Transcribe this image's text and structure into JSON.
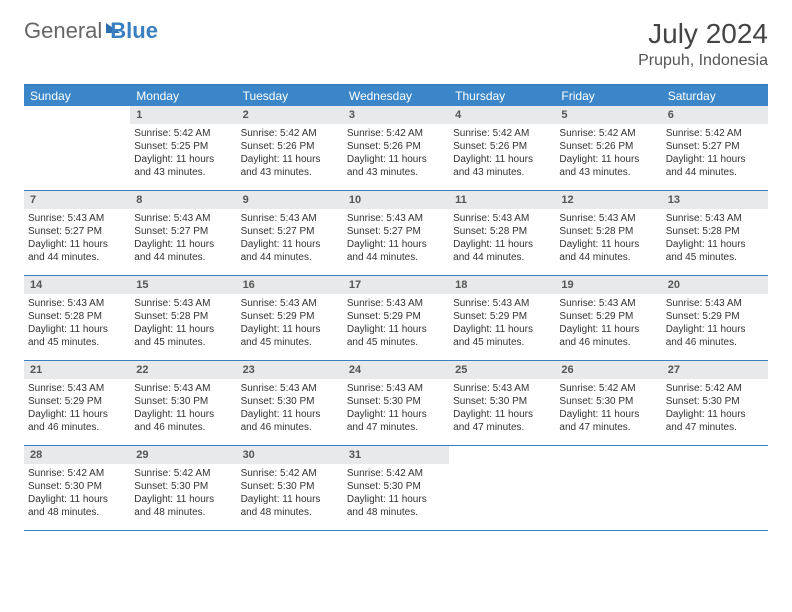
{
  "logo": {
    "part1": "General",
    "part2": "Blue"
  },
  "title": "July 2024",
  "location": "Prupuh, Indonesia",
  "colors": {
    "header_bg": "#3a86c8",
    "border": "#3a7fbf",
    "daynum_bg": "#e8e9ea",
    "text": "#333333",
    "title_text": "#444444"
  },
  "day_names": [
    "Sunday",
    "Monday",
    "Tuesday",
    "Wednesday",
    "Thursday",
    "Friday",
    "Saturday"
  ],
  "weeks": [
    [
      null,
      {
        "n": "1",
        "sr": "Sunrise: 5:42 AM",
        "ss": "Sunset: 5:25 PM",
        "d1": "Daylight: 11 hours",
        "d2": "and 43 minutes."
      },
      {
        "n": "2",
        "sr": "Sunrise: 5:42 AM",
        "ss": "Sunset: 5:26 PM",
        "d1": "Daylight: 11 hours",
        "d2": "and 43 minutes."
      },
      {
        "n": "3",
        "sr": "Sunrise: 5:42 AM",
        "ss": "Sunset: 5:26 PM",
        "d1": "Daylight: 11 hours",
        "d2": "and 43 minutes."
      },
      {
        "n": "4",
        "sr": "Sunrise: 5:42 AM",
        "ss": "Sunset: 5:26 PM",
        "d1": "Daylight: 11 hours",
        "d2": "and 43 minutes."
      },
      {
        "n": "5",
        "sr": "Sunrise: 5:42 AM",
        "ss": "Sunset: 5:26 PM",
        "d1": "Daylight: 11 hours",
        "d2": "and 43 minutes."
      },
      {
        "n": "6",
        "sr": "Sunrise: 5:42 AM",
        "ss": "Sunset: 5:27 PM",
        "d1": "Daylight: 11 hours",
        "d2": "and 44 minutes."
      }
    ],
    [
      {
        "n": "7",
        "sr": "Sunrise: 5:43 AM",
        "ss": "Sunset: 5:27 PM",
        "d1": "Daylight: 11 hours",
        "d2": "and 44 minutes."
      },
      {
        "n": "8",
        "sr": "Sunrise: 5:43 AM",
        "ss": "Sunset: 5:27 PM",
        "d1": "Daylight: 11 hours",
        "d2": "and 44 minutes."
      },
      {
        "n": "9",
        "sr": "Sunrise: 5:43 AM",
        "ss": "Sunset: 5:27 PM",
        "d1": "Daylight: 11 hours",
        "d2": "and 44 minutes."
      },
      {
        "n": "10",
        "sr": "Sunrise: 5:43 AM",
        "ss": "Sunset: 5:27 PM",
        "d1": "Daylight: 11 hours",
        "d2": "and 44 minutes."
      },
      {
        "n": "11",
        "sr": "Sunrise: 5:43 AM",
        "ss": "Sunset: 5:28 PM",
        "d1": "Daylight: 11 hours",
        "d2": "and 44 minutes."
      },
      {
        "n": "12",
        "sr": "Sunrise: 5:43 AM",
        "ss": "Sunset: 5:28 PM",
        "d1": "Daylight: 11 hours",
        "d2": "and 44 minutes."
      },
      {
        "n": "13",
        "sr": "Sunrise: 5:43 AM",
        "ss": "Sunset: 5:28 PM",
        "d1": "Daylight: 11 hours",
        "d2": "and 45 minutes."
      }
    ],
    [
      {
        "n": "14",
        "sr": "Sunrise: 5:43 AM",
        "ss": "Sunset: 5:28 PM",
        "d1": "Daylight: 11 hours",
        "d2": "and 45 minutes."
      },
      {
        "n": "15",
        "sr": "Sunrise: 5:43 AM",
        "ss": "Sunset: 5:28 PM",
        "d1": "Daylight: 11 hours",
        "d2": "and 45 minutes."
      },
      {
        "n": "16",
        "sr": "Sunrise: 5:43 AM",
        "ss": "Sunset: 5:29 PM",
        "d1": "Daylight: 11 hours",
        "d2": "and 45 minutes."
      },
      {
        "n": "17",
        "sr": "Sunrise: 5:43 AM",
        "ss": "Sunset: 5:29 PM",
        "d1": "Daylight: 11 hours",
        "d2": "and 45 minutes."
      },
      {
        "n": "18",
        "sr": "Sunrise: 5:43 AM",
        "ss": "Sunset: 5:29 PM",
        "d1": "Daylight: 11 hours",
        "d2": "and 45 minutes."
      },
      {
        "n": "19",
        "sr": "Sunrise: 5:43 AM",
        "ss": "Sunset: 5:29 PM",
        "d1": "Daylight: 11 hours",
        "d2": "and 46 minutes."
      },
      {
        "n": "20",
        "sr": "Sunrise: 5:43 AM",
        "ss": "Sunset: 5:29 PM",
        "d1": "Daylight: 11 hours",
        "d2": "and 46 minutes."
      }
    ],
    [
      {
        "n": "21",
        "sr": "Sunrise: 5:43 AM",
        "ss": "Sunset: 5:29 PM",
        "d1": "Daylight: 11 hours",
        "d2": "and 46 minutes."
      },
      {
        "n": "22",
        "sr": "Sunrise: 5:43 AM",
        "ss": "Sunset: 5:30 PM",
        "d1": "Daylight: 11 hours",
        "d2": "and 46 minutes."
      },
      {
        "n": "23",
        "sr": "Sunrise: 5:43 AM",
        "ss": "Sunset: 5:30 PM",
        "d1": "Daylight: 11 hours",
        "d2": "and 46 minutes."
      },
      {
        "n": "24",
        "sr": "Sunrise: 5:43 AM",
        "ss": "Sunset: 5:30 PM",
        "d1": "Daylight: 11 hours",
        "d2": "and 47 minutes."
      },
      {
        "n": "25",
        "sr": "Sunrise: 5:43 AM",
        "ss": "Sunset: 5:30 PM",
        "d1": "Daylight: 11 hours",
        "d2": "and 47 minutes."
      },
      {
        "n": "26",
        "sr": "Sunrise: 5:42 AM",
        "ss": "Sunset: 5:30 PM",
        "d1": "Daylight: 11 hours",
        "d2": "and 47 minutes."
      },
      {
        "n": "27",
        "sr": "Sunrise: 5:42 AM",
        "ss": "Sunset: 5:30 PM",
        "d1": "Daylight: 11 hours",
        "d2": "and 47 minutes."
      }
    ],
    [
      {
        "n": "28",
        "sr": "Sunrise: 5:42 AM",
        "ss": "Sunset: 5:30 PM",
        "d1": "Daylight: 11 hours",
        "d2": "and 48 minutes."
      },
      {
        "n": "29",
        "sr": "Sunrise: 5:42 AM",
        "ss": "Sunset: 5:30 PM",
        "d1": "Daylight: 11 hours",
        "d2": "and 48 minutes."
      },
      {
        "n": "30",
        "sr": "Sunrise: 5:42 AM",
        "ss": "Sunset: 5:30 PM",
        "d1": "Daylight: 11 hours",
        "d2": "and 48 minutes."
      },
      {
        "n": "31",
        "sr": "Sunrise: 5:42 AM",
        "ss": "Sunset: 5:30 PM",
        "d1": "Daylight: 11 hours",
        "d2": "and 48 minutes."
      },
      null,
      null,
      null
    ]
  ]
}
